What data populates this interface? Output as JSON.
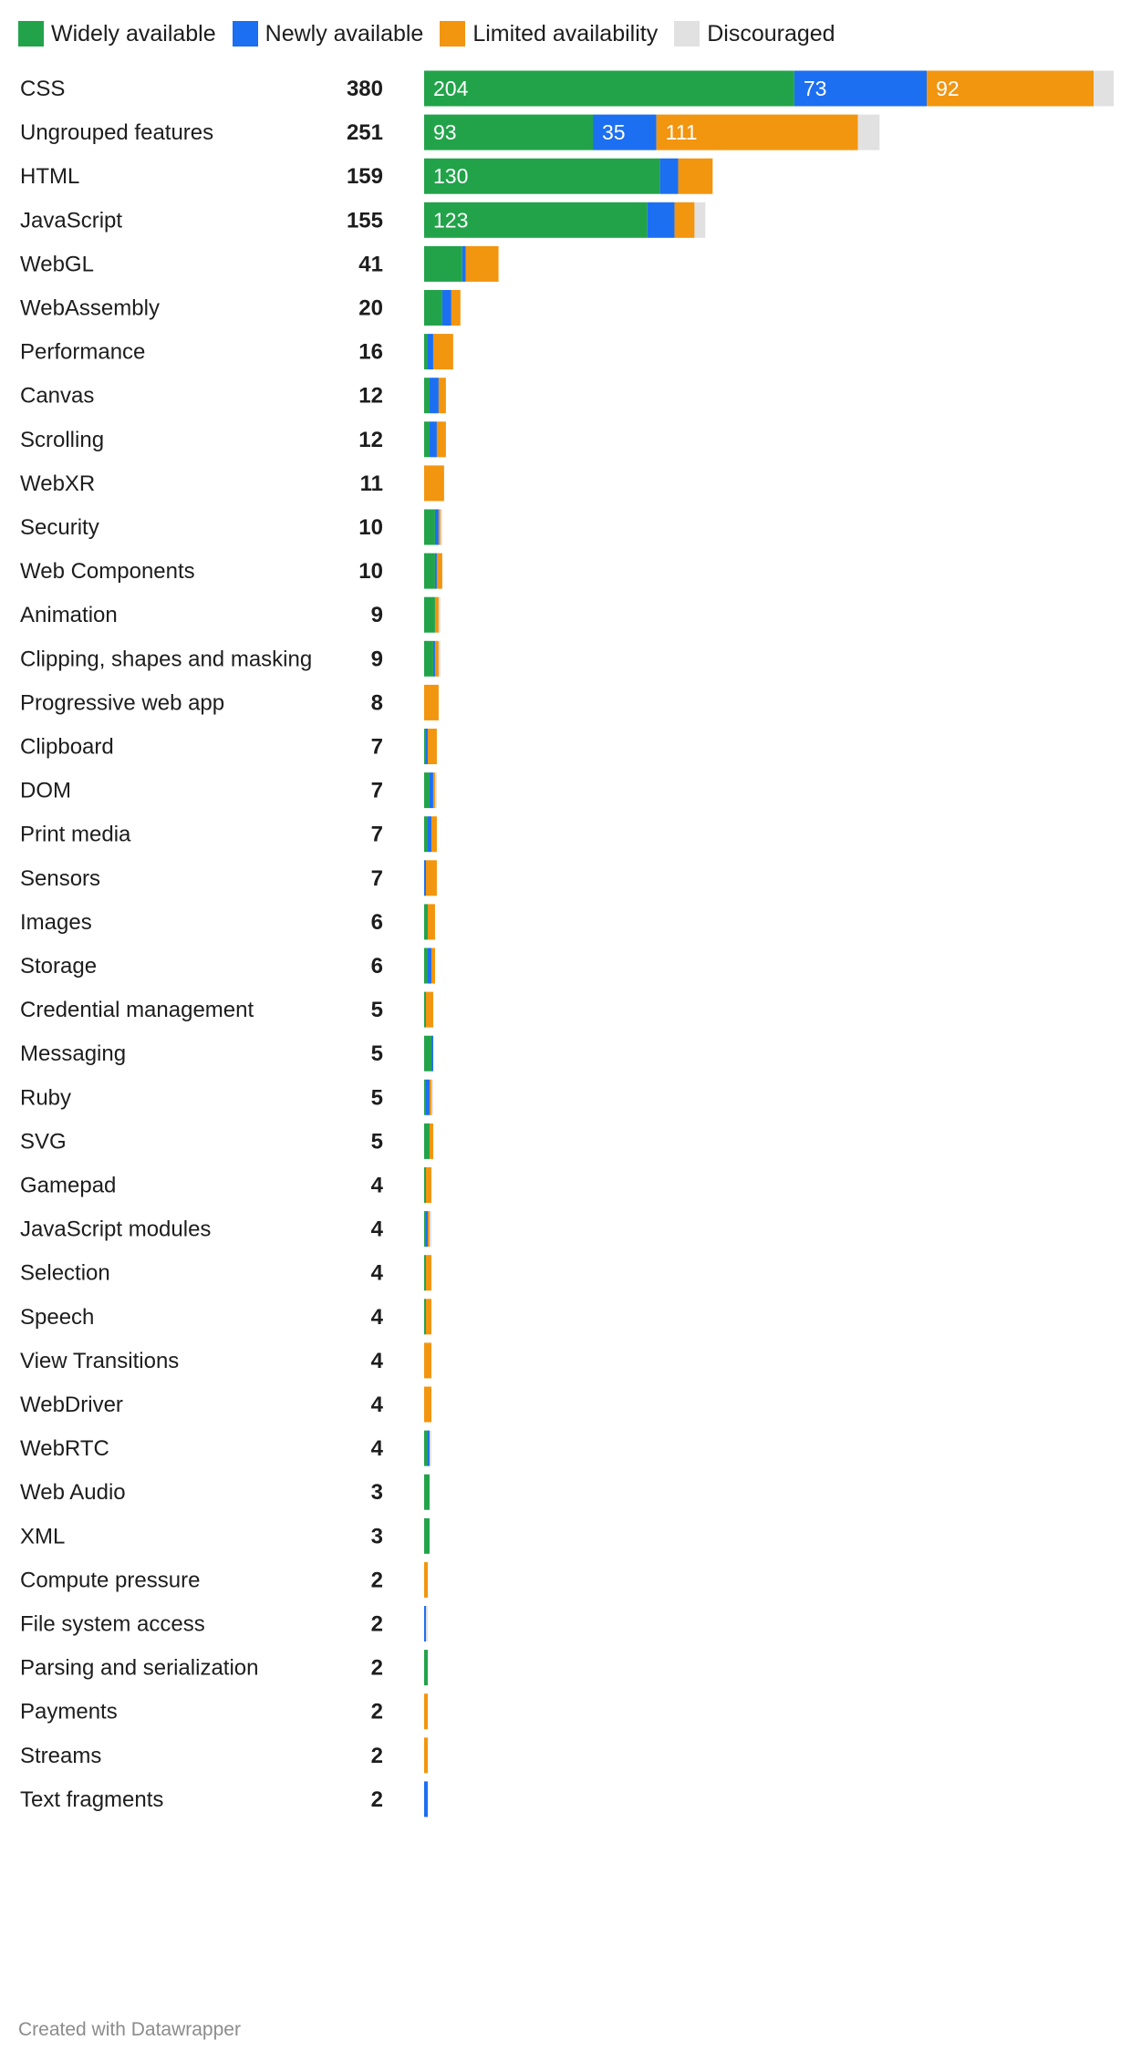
{
  "colors": {
    "widely": "#22a34a",
    "newly": "#1c6ff0",
    "limited": "#f2950f",
    "discouraged": "#e1e1e1"
  },
  "legend": [
    {
      "label": "Widely available",
      "color": "#22a34a"
    },
    {
      "label": "Newly available",
      "color": "#1c6ff0"
    },
    {
      "label": "Limited availability",
      "color": "#f2950f"
    },
    {
      "label": "Discouraged",
      "color": "#e1e1e1"
    }
  ],
  "credit": "Created with Datawrapper",
  "chart_data": {
    "type": "bar",
    "orientation": "horizontal",
    "stacked": true,
    "grid": false,
    "legend_position": "top-left",
    "xlim": [
      0,
      380
    ],
    "series_names": [
      "Widely available",
      "Newly available",
      "Limited availability",
      "Discouraged"
    ],
    "rows": [
      {
        "category": "CSS",
        "total": 380,
        "values": [
          204,
          73,
          92,
          11
        ],
        "labels": [
          "204",
          "73",
          "92",
          ""
        ]
      },
      {
        "category": "Ungrouped features",
        "total": 251,
        "values": [
          93,
          35,
          111,
          12
        ],
        "labels": [
          "93",
          "35",
          "111",
          ""
        ]
      },
      {
        "category": "HTML",
        "total": 159,
        "values": [
          130,
          10,
          19,
          0
        ],
        "labels": [
          "130",
          "",
          "",
          ""
        ]
      },
      {
        "category": "JavaScript",
        "total": 155,
        "values": [
          123,
          15,
          11,
          6
        ],
        "labels": [
          "123",
          "",
          "",
          ""
        ]
      },
      {
        "category": "WebGL",
        "total": 41,
        "values": [
          21,
          2,
          18,
          0
        ]
      },
      {
        "category": "WebAssembly",
        "total": 20,
        "values": [
          10,
          5,
          5,
          0
        ]
      },
      {
        "category": "Performance",
        "total": 16,
        "values": [
          2,
          3,
          11,
          0
        ]
      },
      {
        "category": "Canvas",
        "total": 12,
        "values": [
          3,
          5,
          4,
          0
        ]
      },
      {
        "category": "Scrolling",
        "total": 12,
        "values": [
          3,
          4,
          5,
          0
        ]
      },
      {
        "category": "WebXR",
        "total": 11,
        "values": [
          0,
          0,
          11,
          0
        ]
      },
      {
        "category": "Security",
        "total": 10,
        "values": [
          6,
          2,
          1,
          1
        ]
      },
      {
        "category": "Web Components",
        "total": 10,
        "values": [
          6,
          1,
          3,
          0
        ]
      },
      {
        "category": "Animation",
        "total": 9,
        "values": [
          6,
          0,
          2,
          1
        ]
      },
      {
        "category": "Clipping, shapes and masking",
        "total": 9,
        "values": [
          5,
          1,
          2,
          1
        ]
      },
      {
        "category": "Progressive web app",
        "total": 8,
        "values": [
          0,
          0,
          8,
          0
        ]
      },
      {
        "category": "Clipboard",
        "total": 7,
        "values": [
          1,
          1,
          5,
          0
        ]
      },
      {
        "category": "DOM",
        "total": 7,
        "values": [
          3,
          2,
          1,
          1
        ]
      },
      {
        "category": "Print media",
        "total": 7,
        "values": [
          2,
          2,
          3,
          0
        ]
      },
      {
        "category": "Sensors",
        "total": 7,
        "values": [
          0,
          1,
          6,
          0
        ]
      },
      {
        "category": "Images",
        "total": 6,
        "values": [
          2,
          0,
          4,
          0
        ]
      },
      {
        "category": "Storage",
        "total": 6,
        "values": [
          2,
          2,
          2,
          0
        ]
      },
      {
        "category": "Credential management",
        "total": 5,
        "values": [
          1,
          0,
          4,
          0
        ]
      },
      {
        "category": "Messaging",
        "total": 5,
        "values": [
          4,
          1,
          0,
          0
        ]
      },
      {
        "category": "Ruby",
        "total": 5,
        "values": [
          1,
          2,
          1,
          1
        ]
      },
      {
        "category": "SVG",
        "total": 5,
        "values": [
          3,
          0,
          2,
          0
        ]
      },
      {
        "category": "Gamepad",
        "total": 4,
        "values": [
          1,
          0,
          3,
          0
        ]
      },
      {
        "category": "JavaScript modules",
        "total": 4,
        "values": [
          1,
          1,
          1,
          1
        ]
      },
      {
        "category": "Selection",
        "total": 4,
        "values": [
          1,
          0,
          3,
          0
        ]
      },
      {
        "category": "Speech",
        "total": 4,
        "values": [
          1,
          0,
          3,
          0
        ]
      },
      {
        "category": "View Transitions",
        "total": 4,
        "values": [
          0,
          0,
          4,
          0
        ]
      },
      {
        "category": "WebDriver",
        "total": 4,
        "values": [
          0,
          0,
          4,
          0
        ]
      },
      {
        "category": "WebRTC",
        "total": 4,
        "values": [
          2,
          1,
          0,
          1
        ]
      },
      {
        "category": "Web Audio",
        "total": 3,
        "values": [
          3,
          0,
          0,
          0
        ]
      },
      {
        "category": "XML",
        "total": 3,
        "values": [
          3,
          0,
          0,
          0
        ]
      },
      {
        "category": "Compute pressure",
        "total": 2,
        "values": [
          0,
          0,
          2,
          0
        ]
      },
      {
        "category": "File system access",
        "total": 2,
        "values": [
          0,
          1,
          0,
          1
        ]
      },
      {
        "category": "Parsing and serialization",
        "total": 2,
        "values": [
          2,
          0,
          0,
          0
        ]
      },
      {
        "category": "Payments",
        "total": 2,
        "values": [
          0,
          0,
          2,
          0
        ]
      },
      {
        "category": "Streams",
        "total": 2,
        "values": [
          0,
          0,
          2,
          0
        ]
      },
      {
        "category": "Text fragments",
        "total": 2,
        "values": [
          0,
          2,
          0,
          0
        ]
      }
    ]
  }
}
